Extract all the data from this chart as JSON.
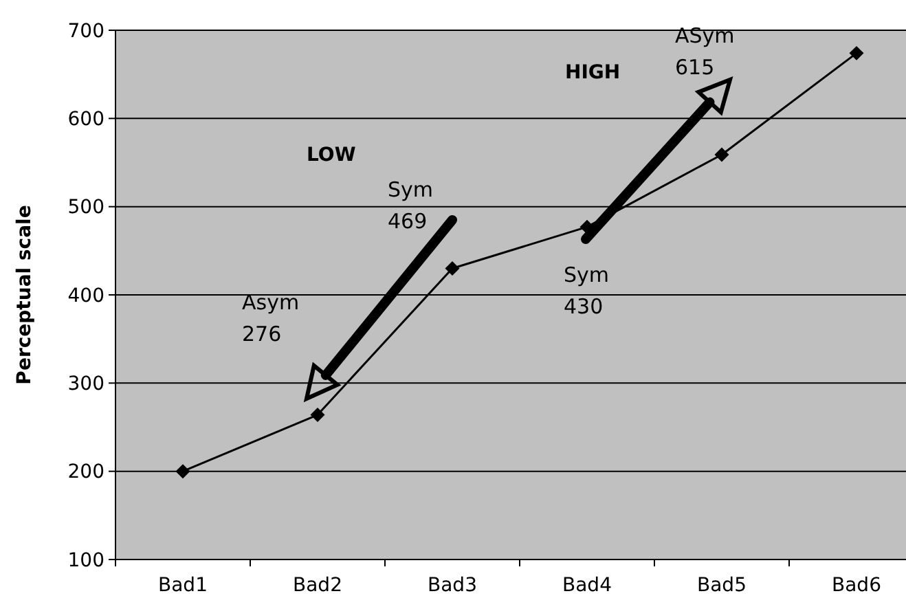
{
  "chart_data": {
    "type": "line",
    "ylabel": "Perceptual scale",
    "categories": [
      "Bad1",
      "Bad2",
      "Bad3",
      "Bad4",
      "Bad5",
      "Bad6"
    ],
    "series": [
      {
        "color": "#000000",
        "values": [
          200,
          264,
          430,
          477,
          559,
          674
        ]
      }
    ],
    "ylim": [
      100,
      700
    ],
    "yticks": [
      100,
      200,
      300,
      400,
      500,
      600,
      700
    ],
    "grid": "y",
    "marker": "diamond",
    "line_style": "solid",
    "annotations": [
      "Asym\n276",
      "Sym\n469",
      "Sym\n430",
      "ASym\n615",
      "LOW",
      "HIGH"
    ]
  }
}
